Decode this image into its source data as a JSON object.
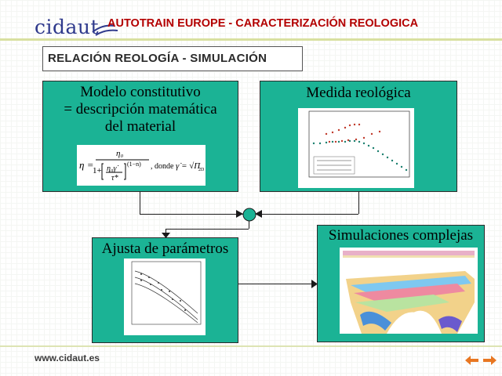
{
  "header": {
    "logo_text": "cidaut",
    "title": "AUTOTRAIN EUROPE - CARACTERIZACIÓN REOLOGICA"
  },
  "subtitle": "RELACIÓN REOLOGÍA - SIMULACIÓN",
  "boxes": {
    "model": {
      "line1": "Modelo constitutivo",
      "line2": "= descripción matemática",
      "line3": "del material",
      "formula_tail": ", donde"
    },
    "measure": {
      "title": "Medida reológica"
    },
    "fit": {
      "title": "Ajusta de parámetros"
    },
    "sim": {
      "title": "Simulaciones complejas"
    }
  },
  "footer": {
    "url": "www.cidaut.es"
  },
  "colors": {
    "box": "#1bb395",
    "title": "#b30000",
    "logo": "#2f3a8c",
    "nav": "#e87722"
  },
  "icons": {
    "prev": "arrow-left-icon",
    "next": "arrow-right-icon"
  }
}
